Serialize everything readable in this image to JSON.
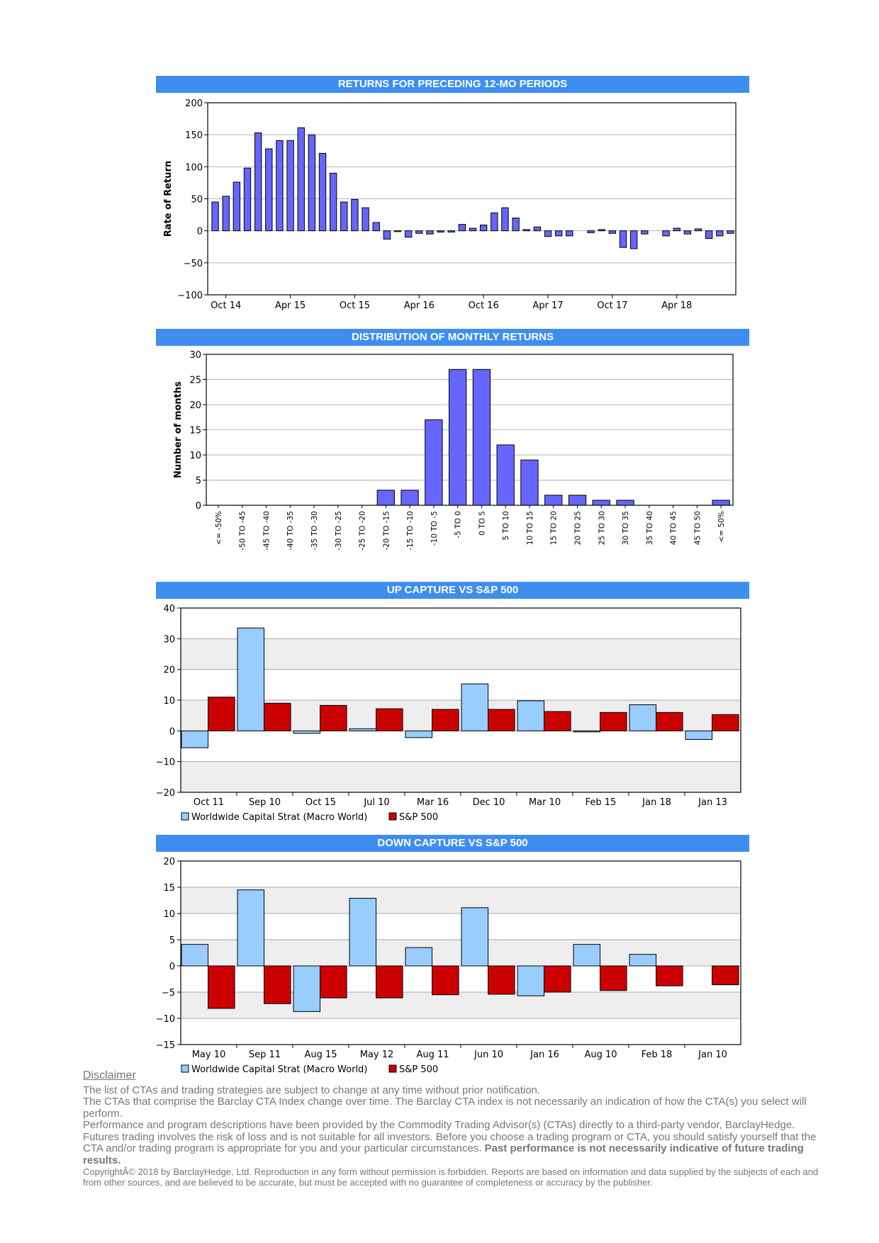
{
  "charts": {
    "rolling": {
      "header": "RETURNS FOR PRECEDING 12-MO PERIODS",
      "chart_data": {
        "type": "bar",
        "title": "RETURNS FOR PRECEDING 12-MO PERIODS",
        "ylabel": "Rate of Return",
        "ylim": [
          -100,
          200
        ],
        "yticks": [
          -100,
          -50,
          0,
          50,
          100,
          150,
          200
        ],
        "xtick_labels": [
          "Oct 14",
          "Apr 15",
          "Oct 15",
          "Apr 16",
          "Oct 16",
          "Apr 17",
          "Oct 17",
          "Apr 18"
        ],
        "xtick_indices": [
          1,
          7,
          13,
          19,
          25,
          31,
          37,
          43
        ],
        "values": [
          45,
          54,
          76,
          98,
          153,
          128,
          141,
          141,
          161,
          150,
          121,
          90,
          45,
          49,
          36,
          13,
          -13,
          -1,
          -10,
          -4,
          -5,
          -2,
          -2,
          10,
          4,
          9,
          28,
          36,
          20,
          2,
          6,
          -9,
          -8,
          -8,
          0,
          -3,
          2,
          -4,
          -26,
          -28,
          -5,
          0,
          -8,
          4,
          -5,
          3,
          -12,
          -8,
          -4
        ],
        "color": "#6666ff",
        "grid": true
      }
    },
    "distribution": {
      "header": "DISTRIBUTION OF MONTHLY RETURNS",
      "chart_data": {
        "type": "bar",
        "title": "DISTRIBUTION OF MONTHLY RETURNS",
        "ylabel": "Number of months",
        "ylim": [
          0,
          30
        ],
        "yticks": [
          0,
          5,
          10,
          15,
          20,
          25,
          30
        ],
        "categories": [
          "<= -50%",
          "-50 TO -45",
          "-45 TO -40",
          "-40 TO -35",
          "-35 TO -30",
          "-30 TO -25",
          "-25 TO -20",
          "-20 TO -15",
          "-15 TO -10",
          "-10 TO -5",
          "-5 TO 0",
          "0 TO 5",
          "5 TO 10",
          "10 TO 15",
          "15 TO 20",
          "20 TO 25",
          "25 TO 30",
          "30 TO 35",
          "35 TO 40",
          "40 TO 45",
          "45 TO 50",
          "<= 50%"
        ],
        "values": [
          0,
          0,
          0,
          0,
          0,
          0,
          0,
          3,
          3,
          17,
          27,
          27,
          12,
          9,
          2,
          2,
          1,
          1,
          0,
          0,
          0,
          1
        ],
        "color": "#6666ff",
        "grid": true
      }
    },
    "up_capture": {
      "header": "UP CAPTURE VS S&P 500",
      "chart_data": {
        "type": "bar",
        "title": "UP CAPTURE VS S&P 500",
        "ylim": [
          -20,
          40
        ],
        "yticks": [
          -20,
          -10,
          0,
          10,
          20,
          30,
          40
        ],
        "categories": [
          "Oct 11",
          "Sep 10",
          "Oct 15",
          "Jul 10",
          "Mar 16",
          "Dec 10",
          "Mar 10",
          "Feb 15",
          "Jan 18",
          "Jan 13"
        ],
        "series": [
          {
            "name": "Worldwide Capital Strat (Macro World)",
            "color": "#99ccff",
            "values": [
              -5.5,
              33.5,
              -0.8,
              0.7,
              -2.2,
              15.3,
              9.8,
              -0.3,
              8.5,
              -2.8
            ]
          },
          {
            "name": "S&P 500",
            "color": "#cc0000",
            "values": [
              11,
              9,
              8.3,
              7.2,
              7,
              7,
              6.3,
              6,
              6,
              5.3
            ]
          }
        ],
        "legend": "bottom-left",
        "banded_background": true
      }
    },
    "down_capture": {
      "header": "DOWN CAPTURE VS S&P 500",
      "chart_data": {
        "type": "bar",
        "title": "DOWN CAPTURE VS S&P 500",
        "ylim": [
          -15,
          20
        ],
        "yticks": [
          -15,
          -10,
          -5,
          0,
          5,
          10,
          15,
          20
        ],
        "categories": [
          "May 10",
          "Sep 11",
          "Aug 15",
          "May 12",
          "Aug 11",
          "Jun 10",
          "Jan 16",
          "Aug 10",
          "Feb 18",
          "Jan 10"
        ],
        "series": [
          {
            "name": "Worldwide Capital Strat (Macro World)",
            "color": "#99ccff",
            "values": [
              4.1,
              14.5,
              -8.7,
              12.9,
              3.5,
              11.1,
              -5.7,
              4.1,
              2.2,
              0
            ]
          },
          {
            "name": "S&P 500",
            "color": "#cc0000",
            "values": [
              -8.1,
              -7.2,
              -6.1,
              -6.1,
              -5.5,
              -5.4,
              -5,
              -4.7,
              -3.8,
              -3.6
            ]
          }
        ],
        "legend": "bottom-left",
        "banded_background": true
      }
    }
  },
  "disclaimer": {
    "title": "Disclaimer",
    "line1": "The list of CTAs and trading strategies are subject to change at any time without prior notification.",
    "line2": "The CTAs that comprise the Barclay CTA Index change over time.  The Barclay CTA index is not necessarily an indication of how the CTA(s) you select will perform.",
    "line3": "Performance and program descriptions have been provided by the Commodity Trading Advisor(s) (CTAs) directly to a third-party vendor, BarclayHedge. Futures trading involves the risk of loss and is not suitable for all investors.  Before you choose a trading program or CTA, you should satisfy yourself that the CTA and/or trading program is appropriate for you and your particular circumstances.",
    "line3_bold": "Past performance is not necessarily indicative of future trading results.",
    "copyright": "CopyrightÂ©  2018 by BarclayHedge, Ltd. Reproduction in any form without permission is forbidden. Reports are based on information and data supplied by the subjects of each and from other sources, and are believed to be accurate, but must be accepted with no guarantee of completeness or accuracy by the publisher."
  }
}
